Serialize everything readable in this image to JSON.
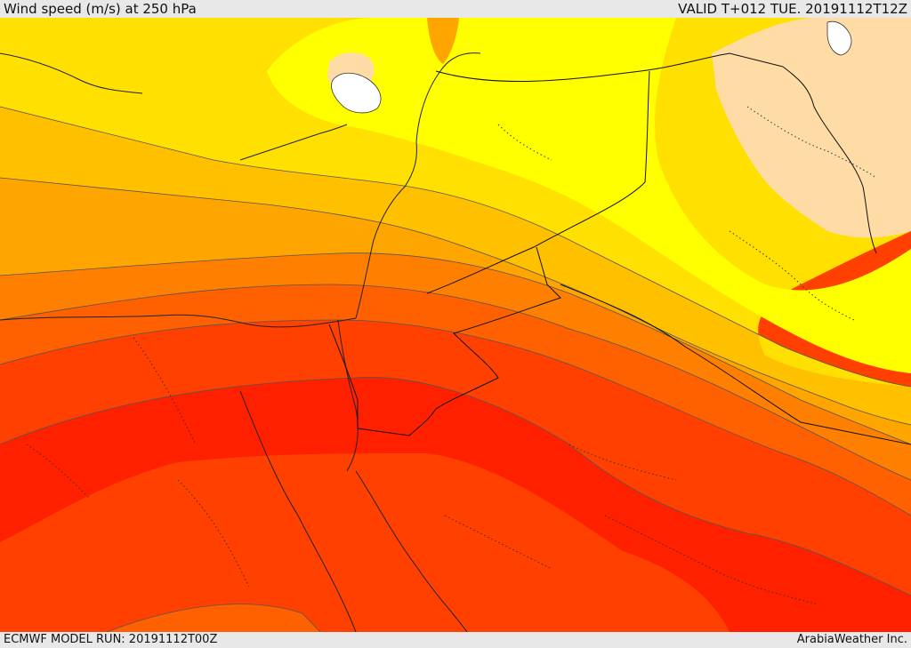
{
  "header": {
    "title": "Wind speed (m/s) at 250 hPa",
    "valid": "VALID T+012 TUE. 20191112T12Z"
  },
  "footer": {
    "model_run": "ECMWF MODEL RUN: 20191112T00Z",
    "credit": "ArabiaWeather Inc."
  },
  "colors": {
    "very_light": "#ffdca6",
    "light_yellow": "#ffff00",
    "yellow": "#ffe000",
    "gold": "#ffc000",
    "light_orange": "#ffa500",
    "orange": "#ff8000",
    "dark_orange": "#ff6000",
    "red_orange": "#ff4000",
    "red": "#ff2000",
    "water": "#ffffff"
  },
  "icons": [
    "boundary-lines",
    "coastlines"
  ]
}
